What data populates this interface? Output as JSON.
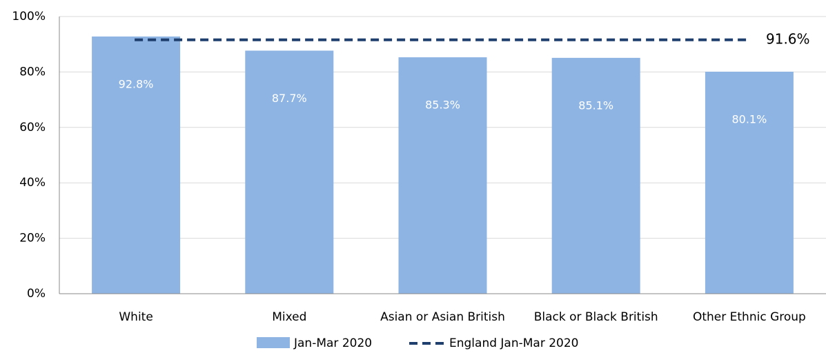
{
  "chart_data": {
    "type": "bar",
    "categories": [
      "White",
      "Mixed",
      "Asian or Asian British",
      "Black or Black British",
      "Other Ethnic Group"
    ],
    "series": [
      {
        "name": "Jan-Mar 2020",
        "color": "#8eb4e3",
        "values": [
          92.8,
          87.7,
          85.3,
          85.1,
          80.1
        ],
        "value_labels": [
          "92.8%",
          "87.7%",
          "85.3%",
          "85.1%",
          "80.1%"
        ]
      }
    ],
    "reference_line": {
      "name": "England Jan-Mar 2020",
      "value": 91.6,
      "value_label": "91.6%",
      "color": "#1f3f6e"
    },
    "ylim": [
      0,
      100
    ],
    "yticks": [
      {
        "value": 0,
        "label": "0%"
      },
      {
        "value": 20,
        "label": "20%"
      },
      {
        "value": 40,
        "label": "40%"
      },
      {
        "value": 60,
        "label": "60%"
      },
      {
        "value": 80,
        "label": "80%"
      },
      {
        "value": 100,
        "label": "100%"
      }
    ],
    "grid": true,
    "legend": "bottom"
  }
}
